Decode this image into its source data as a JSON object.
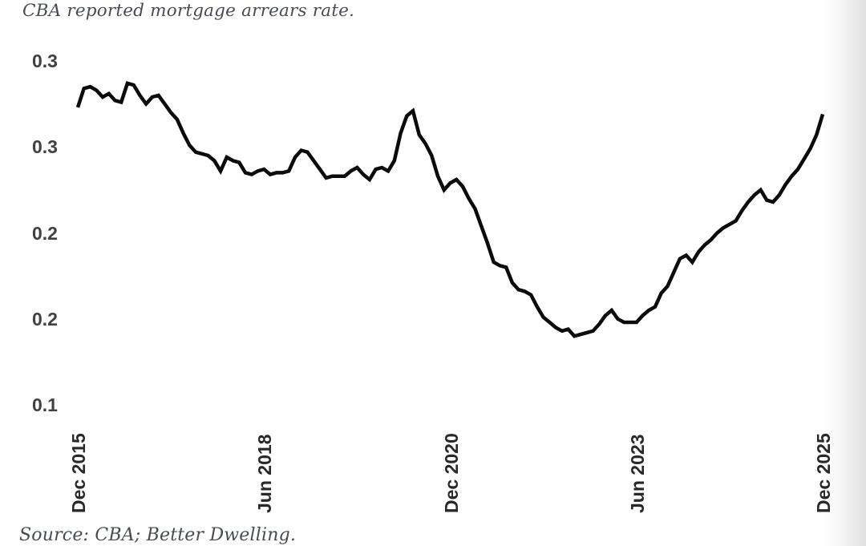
{
  "page": {
    "background": "#ffffff",
    "edge_gradient_edge_color": "#e2e2e2"
  },
  "chart": {
    "title": "CBA reported mortgage arrears rate.",
    "source": "Source: CBA; Better Dwelling.",
    "title_color": "#474c53",
    "y_label_color": "#414144",
    "x_label_color": "#28282b",
    "line_color": "#0b0b0b"
  },
  "chart_data": {
    "type": "line",
    "title": "CBA reported mortgage arrears rate.",
    "source_note": "Source: CBA; Better Dwelling.",
    "xlabel": "",
    "ylabel": "",
    "grid": false,
    "legend": false,
    "frequency": "monthly",
    "x_start_label": "Dec 2015",
    "x_end_label": "Dec 2025",
    "x_tick_labels": [
      "Dec 2015",
      "Jun 2018",
      "Dec 2020",
      "Jun 2023",
      "Dec 2025"
    ],
    "x_tick_month_indices": [
      0,
      30,
      60,
      90,
      120
    ],
    "x_tick_rotation_deg": 90,
    "y_tick_values": [
      0.3,
      0.25,
      0.2,
      0.15,
      0.1
    ],
    "y_tick_labels": [
      "0.3",
      "0.3",
      "0.2",
      "0.2",
      "0.1"
    ],
    "ylim": [
      0.1,
      0.3
    ],
    "series": [
      {
        "name": "CBA reported mortgage arrears rate",
        "values": [
          0.273,
          0.284,
          0.285,
          0.283,
          0.279,
          0.281,
          0.277,
          0.276,
          0.287,
          0.286,
          0.28,
          0.275,
          0.279,
          0.28,
          0.275,
          0.27,
          0.266,
          0.258,
          0.251,
          0.247,
          0.246,
          0.245,
          0.242,
          0.236,
          0.244,
          0.242,
          0.241,
          0.235,
          0.234,
          0.236,
          0.237,
          0.234,
          0.235,
          0.235,
          0.236,
          0.244,
          0.248,
          0.247,
          0.242,
          0.237,
          0.232,
          0.233,
          0.233,
          0.233,
          0.236,
          0.238,
          0.234,
          0.231,
          0.237,
          0.238,
          0.236,
          0.242,
          0.258,
          0.268,
          0.271,
          0.257,
          0.252,
          0.245,
          0.233,
          0.225,
          0.229,
          0.231,
          0.227,
          0.22,
          0.214,
          0.204,
          0.194,
          0.183,
          0.181,
          0.18,
          0.171,
          0.167,
          0.166,
          0.164,
          0.157,
          0.151,
          0.148,
          0.145,
          0.143,
          0.144,
          0.14,
          0.141,
          0.142,
          0.143,
          0.147,
          0.152,
          0.155,
          0.15,
          0.148,
          0.148,
          0.148,
          0.152,
          0.155,
          0.157,
          0.165,
          0.169,
          0.177,
          0.185,
          0.187,
          0.183,
          0.189,
          0.193,
          0.196,
          0.2,
          0.203,
          0.205,
          0.207,
          0.213,
          0.218,
          0.222,
          0.225,
          0.219,
          0.218,
          0.222,
          0.228,
          0.233,
          0.237,
          0.243,
          0.249,
          0.257,
          0.269
        ]
      }
    ]
  }
}
